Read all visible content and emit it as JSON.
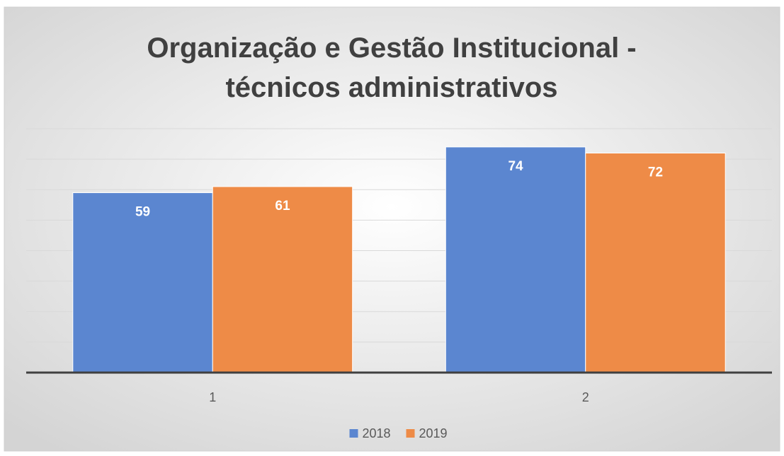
{
  "chart_data": {
    "type": "bar",
    "title": "Organização e Gestão Institucional - técnicos administrativos",
    "categories": [
      "1",
      "2"
    ],
    "series": [
      {
        "name": "2018",
        "color": "#5b86d0",
        "values": [
          59,
          74
        ]
      },
      {
        "name": "2019",
        "color": "#ee8b47",
        "values": [
          61,
          72
        ]
      }
    ],
    "ylim": [
      0,
      80
    ],
    "yticks": [
      0,
      10,
      20,
      30,
      40,
      50,
      60,
      70,
      80
    ],
    "grid": true,
    "legend": "bottom"
  }
}
